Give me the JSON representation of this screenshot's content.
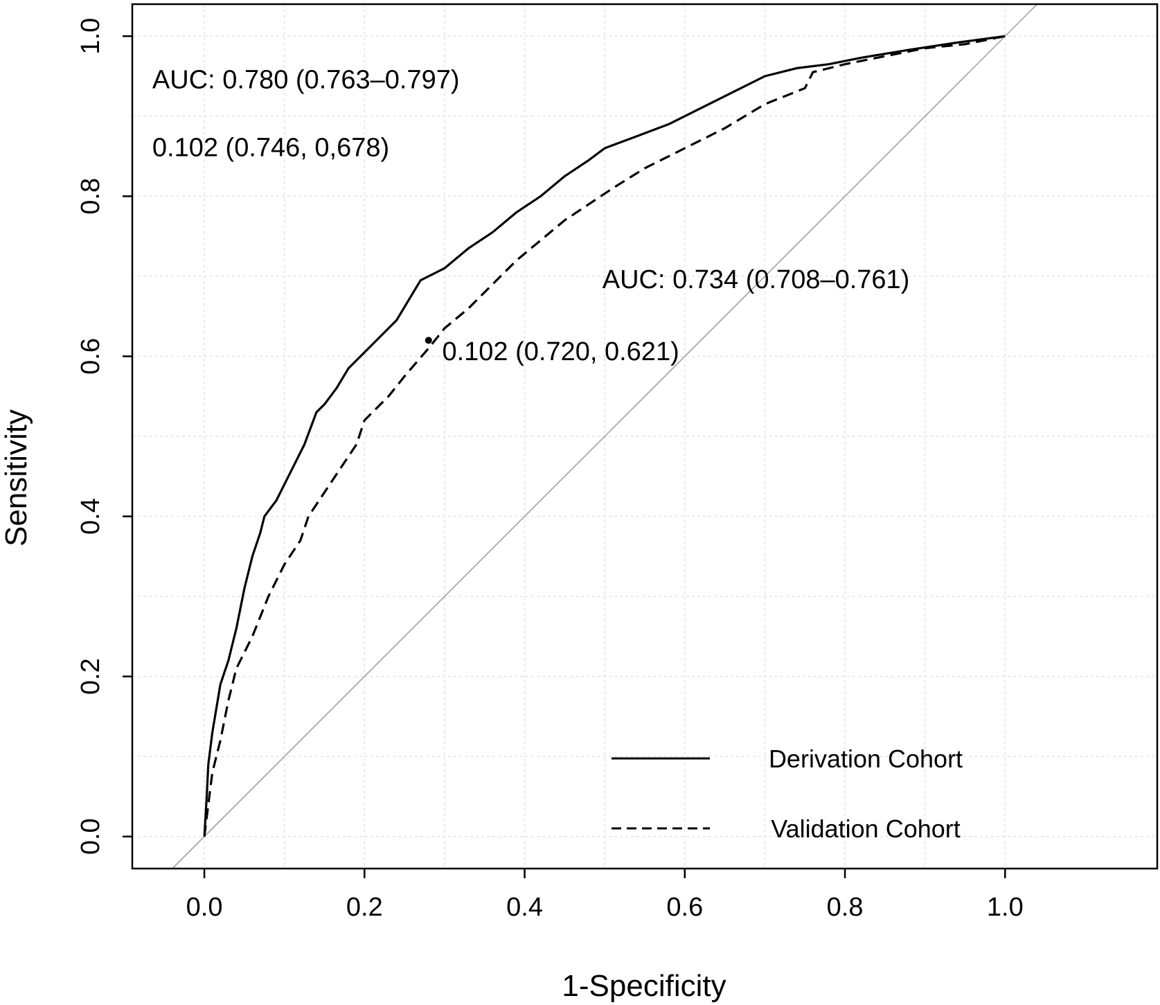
{
  "chart_data": {
    "type": "line",
    "xlabel": "1-Specificity",
    "ylabel": "Sensitivity",
    "xlim": [
      -0.09,
      1.19
    ],
    "ylim": [
      -0.04,
      1.04
    ],
    "x_ticks": [
      "0.0",
      "0.2",
      "0.4",
      "0.6",
      "0.8",
      "1.0"
    ],
    "y_ticks": [
      "0.0",
      "0.2",
      "0.4",
      "0.6",
      "0.8",
      "1.0"
    ],
    "grid": true,
    "legend_position": "bottom-right",
    "reference_line": "diagonal",
    "series": [
      {
        "name": "Derivation Cohort",
        "line_style": "solid",
        "points": [
          [
            0.0,
            0.0
          ],
          [
            0.003,
            0.05
          ],
          [
            0.005,
            0.09
          ],
          [
            0.01,
            0.13
          ],
          [
            0.015,
            0.16
          ],
          [
            0.02,
            0.19
          ],
          [
            0.03,
            0.22
          ],
          [
            0.04,
            0.26
          ],
          [
            0.05,
            0.31
          ],
          [
            0.06,
            0.35
          ],
          [
            0.07,
            0.38
          ],
          [
            0.075,
            0.4
          ],
          [
            0.09,
            0.42
          ],
          [
            0.11,
            0.46
          ],
          [
            0.125,
            0.49
          ],
          [
            0.14,
            0.53
          ],
          [
            0.15,
            0.54
          ],
          [
            0.165,
            0.56
          ],
          [
            0.18,
            0.585
          ],
          [
            0.2,
            0.605
          ],
          [
            0.22,
            0.625
          ],
          [
            0.24,
            0.645
          ],
          [
            0.255,
            0.67
          ],
          [
            0.27,
            0.695
          ],
          [
            0.3,
            0.71
          ],
          [
            0.33,
            0.735
          ],
          [
            0.36,
            0.755
          ],
          [
            0.39,
            0.78
          ],
          [
            0.42,
            0.8
          ],
          [
            0.45,
            0.825
          ],
          [
            0.48,
            0.845
          ],
          [
            0.5,
            0.86
          ],
          [
            0.54,
            0.875
          ],
          [
            0.58,
            0.89
          ],
          [
            0.62,
            0.91
          ],
          [
            0.66,
            0.93
          ],
          [
            0.7,
            0.95
          ],
          [
            0.74,
            0.96
          ],
          [
            0.78,
            0.965
          ],
          [
            0.82,
            0.973
          ],
          [
            0.88,
            0.983
          ],
          [
            0.94,
            0.992
          ],
          [
            1.0,
            1.0
          ]
        ]
      },
      {
        "name": "Validation Cohort",
        "line_style": "dashed",
        "points": [
          [
            0.0,
            0.0
          ],
          [
            0.005,
            0.04
          ],
          [
            0.01,
            0.08
          ],
          [
            0.02,
            0.12
          ],
          [
            0.03,
            0.17
          ],
          [
            0.04,
            0.21
          ],
          [
            0.06,
            0.25
          ],
          [
            0.08,
            0.3
          ],
          [
            0.1,
            0.34
          ],
          [
            0.12,
            0.37
          ],
          [
            0.13,
            0.4
          ],
          [
            0.15,
            0.43
          ],
          [
            0.17,
            0.46
          ],
          [
            0.19,
            0.49
          ],
          [
            0.2,
            0.52
          ],
          [
            0.23,
            0.55
          ],
          [
            0.25,
            0.575
          ],
          [
            0.28,
            0.61
          ],
          [
            0.3,
            0.635
          ],
          [
            0.33,
            0.66
          ],
          [
            0.36,
            0.69
          ],
          [
            0.39,
            0.72
          ],
          [
            0.42,
            0.745
          ],
          [
            0.45,
            0.77
          ],
          [
            0.48,
            0.79
          ],
          [
            0.51,
            0.81
          ],
          [
            0.55,
            0.835
          ],
          [
            0.6,
            0.86
          ],
          [
            0.65,
            0.885
          ],
          [
            0.7,
            0.915
          ],
          [
            0.75,
            0.935
          ],
          [
            0.76,
            0.955
          ],
          [
            0.8,
            0.965
          ],
          [
            0.85,
            0.975
          ],
          [
            0.9,
            0.985
          ],
          [
            0.95,
            0.99
          ],
          [
            1.0,
            1.0
          ]
        ]
      }
    ],
    "annotations": [
      {
        "id": "auc-derivation",
        "text": "AUC: 0.780 (0.763–0.797)",
        "x": -0.065,
        "y": 0.935
      },
      {
        "id": "cutoff-derivation",
        "text": "0.102 (0.746, 0,678)",
        "x": -0.065,
        "y": 0.85
      },
      {
        "id": "auc-validation",
        "text": "AUC: 0.734 (0.708–0.761)",
        "x": 0.497,
        "y": 0.685
      },
      {
        "id": "cutoff-validation",
        "text": "0.102 (0.720, 0.621)",
        "x": 0.297,
        "y": 0.595
      }
    ],
    "cutoff_point": {
      "series": "Validation Cohort",
      "x": 0.28,
      "y": 0.62
    }
  }
}
